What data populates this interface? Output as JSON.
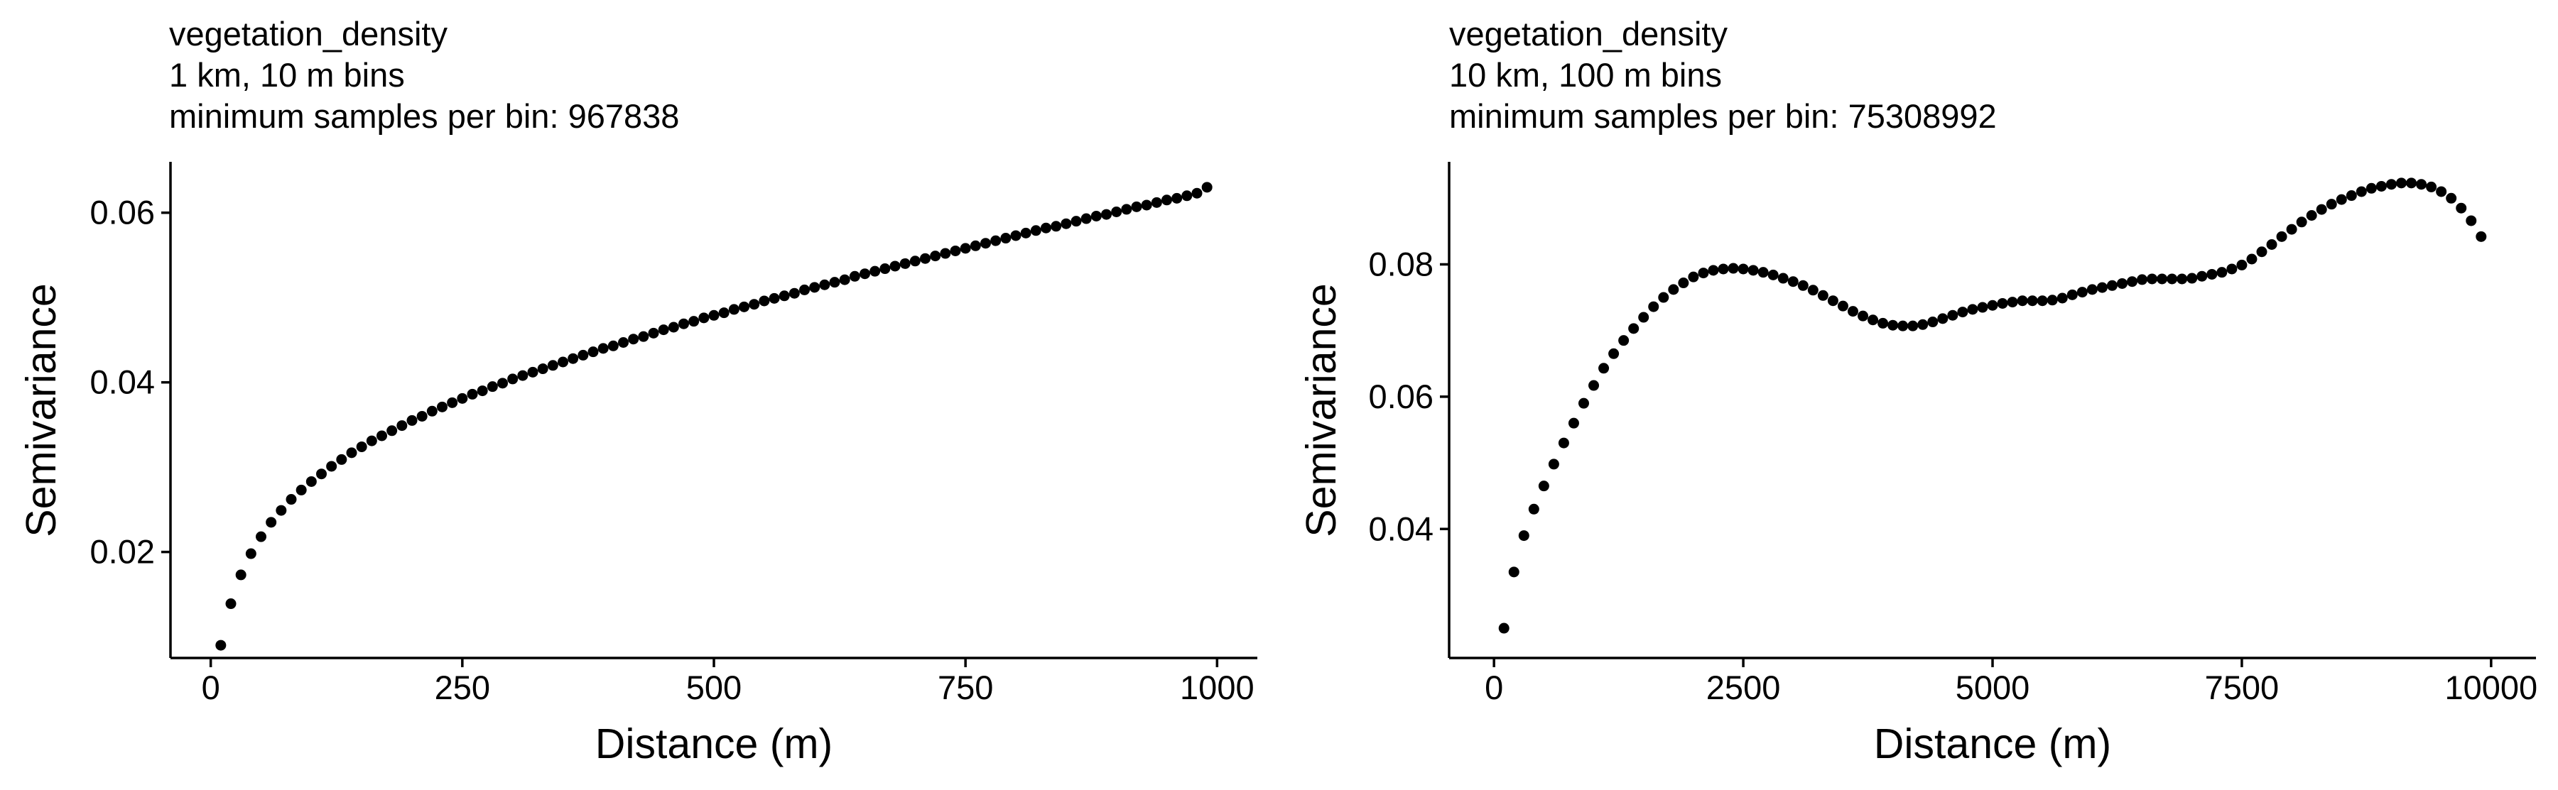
{
  "chart_data": [
    {
      "type": "scatter",
      "title_lines": [
        "vegetation_density",
        "1 km, 10 m bins",
        "minimum samples per bin: 967838"
      ],
      "xlabel": "Distance (m)",
      "ylabel": "Semivariance",
      "xlim": [
        -40,
        1040
      ],
      "ylim": [
        0.0075,
        0.066
      ],
      "x_ticks": [
        0,
        250,
        500,
        750,
        1000
      ],
      "y_ticks": [
        0.02,
        0.04,
        0.06
      ],
      "x_tick_labels": [
        "0",
        "250",
        "500",
        "750",
        "1000"
      ],
      "y_tick_labels": [
        "0.02",
        "0.04",
        "0.06"
      ],
      "grid": false,
      "legend": "none",
      "color": "#000000",
      "points": {
        "x": [
          10,
          20,
          30,
          40,
          50,
          60,
          70,
          80,
          90,
          100,
          110,
          120,
          130,
          140,
          150,
          160,
          170,
          180,
          190,
          200,
          210,
          220,
          230,
          240,
          250,
          260,
          270,
          280,
          290,
          300,
          310,
          320,
          330,
          340,
          350,
          360,
          370,
          380,
          390,
          400,
          410,
          420,
          430,
          440,
          450,
          460,
          470,
          480,
          490,
          500,
          510,
          520,
          530,
          540,
          550,
          560,
          570,
          580,
          590,
          600,
          610,
          620,
          630,
          640,
          650,
          660,
          670,
          680,
          690,
          700,
          710,
          720,
          730,
          740,
          750,
          760,
          770,
          780,
          790,
          800,
          810,
          820,
          830,
          840,
          850,
          860,
          870,
          880,
          890,
          900,
          910,
          920,
          930,
          940,
          950,
          960,
          970,
          980,
          990
        ],
        "y": [
          0.009,
          0.0139,
          0.0173,
          0.0198,
          0.0218,
          0.0235,
          0.0249,
          0.0262,
          0.0273,
          0.0283,
          0.0292,
          0.0301,
          0.0309,
          0.0317,
          0.0324,
          0.0331,
          0.0337,
          0.0343,
          0.0349,
          0.0355,
          0.036,
          0.0366,
          0.0371,
          0.0376,
          0.0381,
          0.0386,
          0.039,
          0.0395,
          0.0399,
          0.0404,
          0.0408,
          0.0412,
          0.0416,
          0.042,
          0.0424,
          0.0428,
          0.0432,
          0.0436,
          0.044,
          0.0443,
          0.0447,
          0.0451,
          0.0454,
          0.0458,
          0.0462,
          0.0465,
          0.0469,
          0.0472,
          0.0476,
          0.0479,
          0.0482,
          0.0486,
          0.0489,
          0.0492,
          0.0496,
          0.0499,
          0.0502,
          0.0505,
          0.0509,
          0.0512,
          0.0515,
          0.0518,
          0.0521,
          0.0525,
          0.0528,
          0.0531,
          0.0534,
          0.0537,
          0.054,
          0.0543,
          0.0546,
          0.0549,
          0.0552,
          0.0555,
          0.0558,
          0.0561,
          0.0564,
          0.0567,
          0.057,
          0.0573,
          0.0576,
          0.0579,
          0.0582,
          0.0584,
          0.0587,
          0.059,
          0.0593,
          0.0596,
          0.0598,
          0.0601,
          0.0604,
          0.0607,
          0.0609,
          0.0612,
          0.0615,
          0.0617,
          0.062,
          0.0623,
          0.063
        ]
      }
    },
    {
      "type": "scatter",
      "title_lines": [
        "vegetation_density",
        "10 km, 100 m bins",
        "minimum samples per bin: 75308992"
      ],
      "xlabel": "Distance (m)",
      "ylabel": "Semivariance",
      "xlim": [
        -450,
        10450
      ],
      "ylim": [
        0.0205,
        0.0955
      ],
      "x_ticks": [
        0,
        2500,
        5000,
        7500,
        10000
      ],
      "y_ticks": [
        0.04,
        0.06,
        0.08
      ],
      "x_tick_labels": [
        "0",
        "2500",
        "5000",
        "7500",
        "10000"
      ],
      "y_tick_labels": [
        "0.04",
        "0.06",
        "0.08"
      ],
      "grid": false,
      "legend": "none",
      "color": "#000000",
      "points": {
        "x": [
          100,
          200,
          300,
          400,
          500,
          600,
          700,
          800,
          900,
          1000,
          1100,
          1200,
          1300,
          1400,
          1500,
          1600,
          1700,
          1800,
          1900,
          2000,
          2100,
          2200,
          2300,
          2400,
          2500,
          2600,
          2700,
          2800,
          2900,
          3000,
          3100,
          3200,
          3300,
          3400,
          3500,
          3600,
          3700,
          3800,
          3900,
          4000,
          4100,
          4200,
          4300,
          4400,
          4500,
          4600,
          4700,
          4800,
          4900,
          5000,
          5100,
          5200,
          5300,
          5400,
          5500,
          5600,
          5700,
          5800,
          5900,
          6000,
          6100,
          6200,
          6300,
          6400,
          6500,
          6600,
          6700,
          6800,
          6900,
          7000,
          7100,
          7200,
          7300,
          7400,
          7500,
          7600,
          7700,
          7800,
          7900,
          8000,
          8100,
          8200,
          8300,
          8400,
          8500,
          8600,
          8700,
          8800,
          8900,
          9000,
          9100,
          9200,
          9300,
          9400,
          9500,
          9600,
          9700,
          9800,
          9900
        ],
        "y": [
          0.025,
          0.0335,
          0.039,
          0.043,
          0.0465,
          0.0498,
          0.053,
          0.056,
          0.059,
          0.0617,
          0.0643,
          0.0665,
          0.0685,
          0.0703,
          0.072,
          0.0736,
          0.075,
          0.0762,
          0.0772,
          0.0781,
          0.0787,
          0.0791,
          0.0793,
          0.0794,
          0.0793,
          0.0791,
          0.0788,
          0.0784,
          0.0779,
          0.0774,
          0.0768,
          0.0761,
          0.0753,
          0.0745,
          0.0737,
          0.0729,
          0.0722,
          0.0716,
          0.0711,
          0.0708,
          0.0707,
          0.0707,
          0.0709,
          0.0713,
          0.0718,
          0.0723,
          0.0728,
          0.0732,
          0.0735,
          0.0738,
          0.0741,
          0.0743,
          0.0745,
          0.0745,
          0.0745,
          0.0746,
          0.0749,
          0.0754,
          0.0758,
          0.0762,
          0.0765,
          0.0768,
          0.0771,
          0.0774,
          0.0777,
          0.0778,
          0.0778,
          0.0778,
          0.0778,
          0.0779,
          0.0782,
          0.0785,
          0.0788,
          0.0793,
          0.0799,
          0.0808,
          0.0819,
          0.083,
          0.0842,
          0.0853,
          0.0864,
          0.0874,
          0.0883,
          0.0891,
          0.0898,
          0.0904,
          0.091,
          0.0915,
          0.0918,
          0.0921,
          0.0923,
          0.0923,
          0.0921,
          0.0917,
          0.091,
          0.09,
          0.0885,
          0.0866,
          0.0842
        ]
      }
    }
  ]
}
